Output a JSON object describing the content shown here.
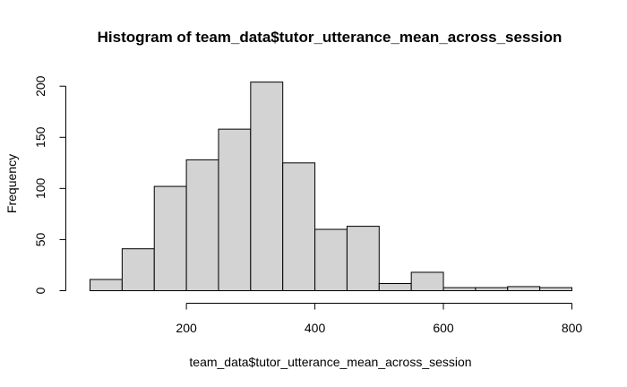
{
  "chart_data": {
    "type": "bar",
    "title": "Histogram of team_data$tutor_utterance_mean_across_session",
    "xlabel": "team_data$tutor_utterance_mean_across_session",
    "ylabel": "Frequency",
    "bin_edges": [
      50,
      100,
      150,
      200,
      250,
      300,
      350,
      400,
      450,
      500,
      550,
      600,
      650,
      700,
      750,
      800
    ],
    "values": [
      11,
      41,
      102,
      128,
      158,
      204,
      125,
      60,
      63,
      7,
      18,
      3,
      3,
      4,
      3
    ],
    "xlim": [
      50,
      800
    ],
    "ylim": [
      0,
      205
    ],
    "x_ticks": [
      200,
      400,
      600,
      800
    ],
    "y_ticks": [
      0,
      50,
      100,
      150,
      200
    ],
    "bar_fill": "#d3d3d3",
    "bar_stroke": "#000000"
  }
}
